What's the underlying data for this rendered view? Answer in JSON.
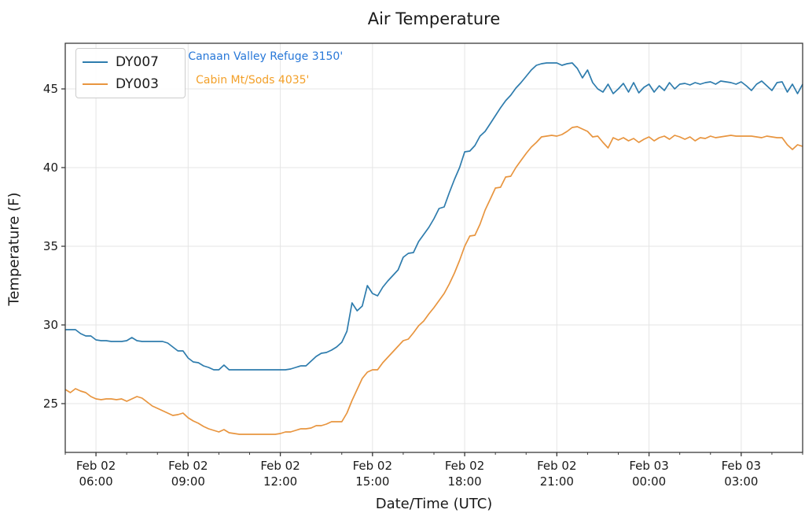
{
  "chart_data": {
    "type": "line",
    "title": "Air Temperature",
    "xlabel": "Date/Time (UTC)",
    "ylabel": "Temperature (F)",
    "grid": true,
    "grid_color": "#e5e5e5",
    "spine_color": "#3a3a3a",
    "legend_position": "upper left",
    "x_start_hour": 5.0,
    "x_step_minutes": 10,
    "xlim_hours": [
      5.0,
      29.0
    ],
    "ylim": [
      21.9,
      47.9
    ],
    "yticks": [
      25,
      30,
      35,
      40,
      45
    ],
    "xticks": [
      {
        "t": 6,
        "line1": "Feb 02",
        "line2": "06:00"
      },
      {
        "t": 9,
        "line1": "Feb 02",
        "line2": "09:00"
      },
      {
        "t": 12,
        "line1": "Feb 02",
        "line2": "12:00"
      },
      {
        "t": 15,
        "line1": "Feb 02",
        "line2": "15:00"
      },
      {
        "t": 18,
        "line1": "Feb 02",
        "line2": "18:00"
      },
      {
        "t": 21,
        "line1": "Feb 02",
        "line2": "21:00"
      },
      {
        "t": 24,
        "line1": "Feb 03",
        "line2": "00:00"
      },
      {
        "t": 27,
        "line1": "Feb 03",
        "line2": "03:00"
      }
    ],
    "minor_xtick_every_hours": 1,
    "series": [
      {
        "name": "DY007",
        "color": "#2e7cad",
        "values": [
          29.7,
          29.7,
          29.7,
          29.45,
          29.3,
          29.3,
          29.05,
          29.0,
          29.0,
          28.95,
          28.95,
          28.95,
          29.0,
          29.2,
          29.0,
          28.95,
          28.95,
          28.95,
          28.95,
          28.95,
          28.85,
          28.6,
          28.35,
          28.35,
          27.9,
          27.65,
          27.6,
          27.4,
          27.3,
          27.15,
          27.15,
          27.45,
          27.15,
          27.15,
          27.15,
          27.15,
          27.15,
          27.15,
          27.15,
          27.15,
          27.15,
          27.15,
          27.15,
          27.15,
          27.2,
          27.3,
          27.4,
          27.4,
          27.7,
          28.0,
          28.2,
          28.25,
          28.4,
          28.6,
          28.9,
          29.6,
          31.4,
          30.9,
          31.2,
          32.5,
          32.0,
          31.85,
          32.4,
          32.8,
          33.15,
          33.5,
          34.3,
          34.55,
          34.6,
          35.3,
          35.75,
          36.2,
          36.75,
          37.4,
          37.5,
          38.4,
          39.25,
          40.0,
          41.0,
          41.05,
          41.4,
          42.0,
          42.3,
          42.8,
          43.3,
          43.8,
          44.25,
          44.6,
          45.05,
          45.4,
          45.8,
          46.2,
          46.5,
          46.6,
          46.65,
          46.65,
          46.65,
          46.5,
          46.6,
          46.65,
          46.3,
          45.7,
          46.2,
          45.4,
          45.0,
          44.8,
          45.3,
          44.7,
          45.0,
          45.35,
          44.8,
          45.4,
          44.75,
          45.1,
          45.3,
          44.8,
          45.2,
          44.9,
          45.4,
          45.0,
          45.3,
          45.35,
          45.25,
          45.4,
          45.3,
          45.4,
          45.45,
          45.3,
          45.5,
          45.45,
          45.4,
          45.3,
          45.45,
          45.2,
          44.9,
          45.3,
          45.5,
          45.2,
          44.9,
          45.4,
          45.45,
          44.8,
          45.3,
          44.7,
          45.3
        ]
      },
      {
        "name": "DY003",
        "color": "#e8953f",
        "values": [
          25.9,
          25.7,
          25.95,
          25.8,
          25.7,
          25.45,
          25.3,
          25.25,
          25.3,
          25.3,
          25.25,
          25.3,
          25.15,
          25.3,
          25.45,
          25.35,
          25.1,
          24.85,
          24.7,
          24.55,
          24.4,
          24.25,
          24.3,
          24.4,
          24.1,
          23.9,
          23.75,
          23.55,
          23.4,
          23.3,
          23.2,
          23.35,
          23.15,
          23.1,
          23.05,
          23.05,
          23.05,
          23.05,
          23.05,
          23.05,
          23.05,
          23.05,
          23.1,
          23.2,
          23.2,
          23.3,
          23.4,
          23.4,
          23.45,
          23.6,
          23.6,
          23.7,
          23.85,
          23.85,
          23.85,
          24.4,
          25.2,
          25.9,
          26.6,
          27.0,
          27.15,
          27.15,
          27.6,
          27.95,
          28.3,
          28.65,
          29.0,
          29.1,
          29.5,
          29.95,
          30.25,
          30.7,
          31.1,
          31.55,
          32.0,
          32.6,
          33.3,
          34.1,
          35.0,
          35.65,
          35.7,
          36.4,
          37.3,
          38.0,
          38.7,
          38.75,
          39.4,
          39.45,
          40.0,
          40.45,
          40.9,
          41.3,
          41.6,
          41.95,
          42.0,
          42.05,
          42.0,
          42.1,
          42.3,
          42.55,
          42.6,
          42.45,
          42.3,
          41.95,
          42.0,
          41.6,
          41.25,
          41.9,
          41.75,
          41.9,
          41.7,
          41.85,
          41.6,
          41.8,
          41.95,
          41.7,
          41.9,
          42.0,
          41.8,
          42.05,
          41.95,
          41.8,
          41.95,
          41.7,
          41.9,
          41.85,
          42.0,
          41.9,
          41.95,
          42.0,
          42.05,
          42.0,
          42.0,
          42.0,
          42.0,
          41.95,
          41.9,
          42.0,
          41.95,
          41.9,
          41.9,
          41.45,
          41.15,
          41.45,
          41.35
        ]
      }
    ],
    "annotations": [
      {
        "text": "Canaan Valley Refuge 3150'",
        "color": "#2878d8",
        "t_hour": 9.0,
        "temp_f": 47.05
      },
      {
        "text": "Cabin Mt/Sods 4035'",
        "color": "#f3a029",
        "t_hour": 9.25,
        "temp_f": 45.55
      }
    ]
  }
}
